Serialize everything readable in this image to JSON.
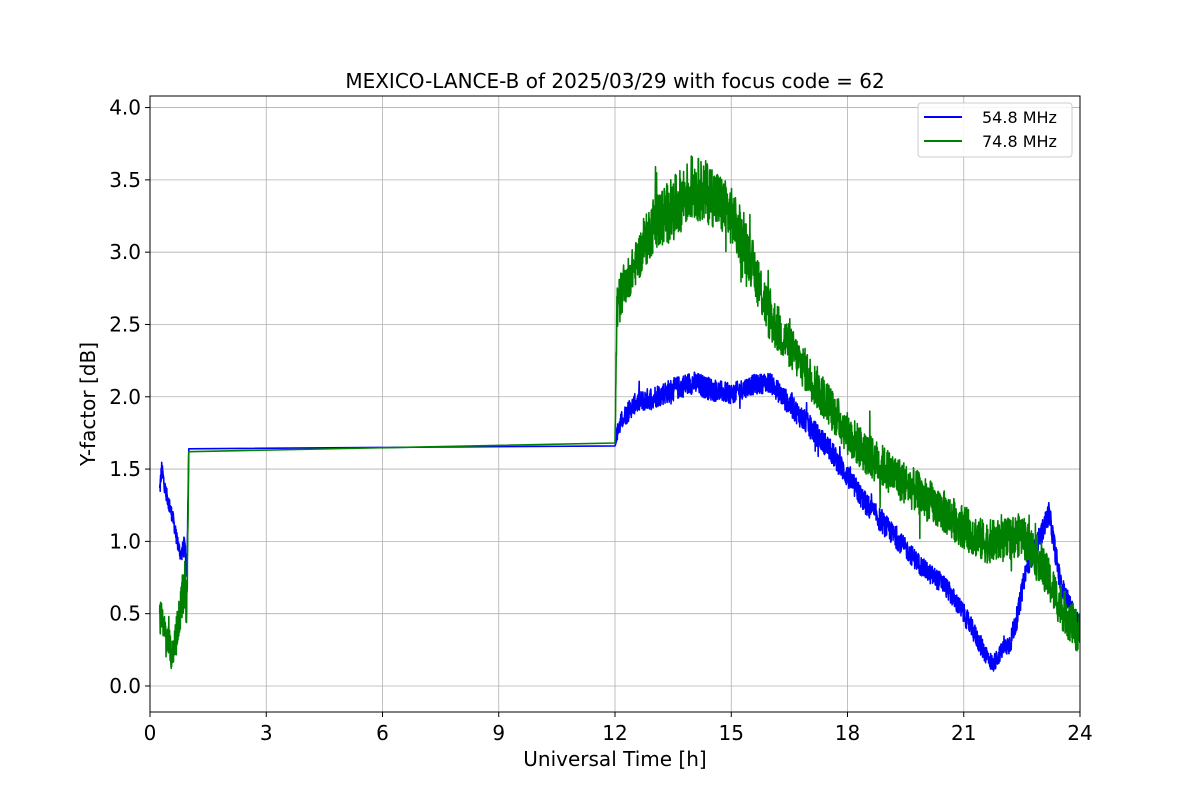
{
  "chart_data": {
    "type": "line",
    "title": "MEXICO-LANCE-B of 2025/03/29 with focus code = 62",
    "xlabel": "Universal Time [h]",
    "ylabel": "Y-factor [dB]",
    "xlim": [
      0,
      24
    ],
    "ylim": [
      -0.18,
      4.08
    ],
    "xticks": [
      0,
      3,
      6,
      9,
      12,
      15,
      18,
      21,
      24
    ],
    "yticks": [
      0.0,
      0.5,
      1.0,
      1.5,
      2.0,
      2.5,
      3.0,
      3.5,
      4.0
    ],
    "xtick_labels": [
      "0",
      "3",
      "6",
      "9",
      "12",
      "15",
      "18",
      "21",
      "24"
    ],
    "ytick_labels": [
      "0.0",
      "0.5",
      "1.0",
      "1.5",
      "2.0",
      "2.5",
      "3.0",
      "3.5",
      "4.0"
    ],
    "grid": true,
    "legend_position": "top-right",
    "series": [
      {
        "name": "54.8 MHz",
        "color": "#0000ff",
        "x": [
          0.25,
          0.3,
          0.4,
          0.5,
          0.6,
          0.7,
          0.75,
          0.8,
          0.9,
          0.95,
          1.0,
          12.0,
          12.05,
          12.2,
          12.5,
          13.0,
          13.5,
          14.0,
          14.5,
          15.0,
          15.5,
          16.0,
          16.5,
          17.0,
          17.5,
          18.0,
          18.5,
          19.0,
          19.5,
          20.0,
          20.5,
          21.0,
          21.5,
          21.75,
          22.0,
          22.2,
          22.4,
          22.6,
          23.0,
          23.2,
          23.5,
          24.0
        ],
        "y": [
          1.35,
          1.5,
          1.35,
          1.25,
          1.15,
          1.0,
          0.95,
          0.9,
          1.0,
          0.75,
          1.64,
          1.66,
          1.75,
          1.85,
          1.95,
          2.0,
          2.05,
          2.1,
          2.05,
          2.02,
          2.08,
          2.1,
          1.95,
          1.8,
          1.65,
          1.45,
          1.25,
          1.1,
          0.95,
          0.8,
          0.7,
          0.5,
          0.25,
          0.15,
          0.25,
          0.3,
          0.5,
          0.8,
          1.05,
          1.2,
          0.7,
          0.4
        ],
        "amplitude": [
          0.06,
          0.06,
          0.05,
          0.05,
          0.05,
          0.05,
          0.05,
          0.05,
          0.06,
          0.06,
          0.0,
          0.0,
          0.06,
          0.07,
          0.07,
          0.08,
          0.08,
          0.08,
          0.08,
          0.07,
          0.07,
          0.07,
          0.08,
          0.08,
          0.08,
          0.08,
          0.08,
          0.08,
          0.07,
          0.07,
          0.07,
          0.07,
          0.07,
          0.06,
          0.06,
          0.08,
          0.08,
          0.07,
          0.08,
          0.08,
          0.08,
          0.08
        ]
      },
      {
        "name": "74.8 MHz",
        "color": "#008000",
        "x": [
          0.25,
          0.3,
          0.4,
          0.5,
          0.55,
          0.6,
          0.7,
          0.8,
          0.9,
          0.95,
          1.0,
          12.0,
          12.05,
          12.2,
          12.5,
          13.0,
          13.5,
          14.0,
          14.5,
          15.0,
          15.5,
          16.0,
          16.5,
          17.0,
          17.5,
          18.0,
          18.5,
          19.0,
          19.5,
          20.0,
          20.5,
          21.0,
          21.5,
          22.0,
          22.5,
          23.0,
          23.5,
          24.0
        ],
        "y": [
          0.45,
          0.5,
          0.35,
          0.3,
          0.2,
          0.25,
          0.4,
          0.55,
          0.7,
          0.5,
          1.62,
          1.68,
          2.6,
          2.75,
          2.9,
          3.2,
          3.3,
          3.45,
          3.4,
          3.25,
          2.95,
          2.55,
          2.35,
          2.15,
          1.95,
          1.75,
          1.6,
          1.5,
          1.4,
          1.3,
          1.2,
          1.1,
          1.0,
          1.0,
          1.05,
          0.85,
          0.55,
          0.35
        ],
        "amplitude": [
          0.12,
          0.1,
          0.1,
          0.1,
          0.1,
          0.1,
          0.12,
          0.15,
          0.18,
          0.15,
          0.0,
          0.0,
          0.2,
          0.15,
          0.15,
          0.2,
          0.22,
          0.22,
          0.22,
          0.2,
          0.18,
          0.18,
          0.15,
          0.15,
          0.15,
          0.15,
          0.15,
          0.15,
          0.15,
          0.15,
          0.15,
          0.15,
          0.15,
          0.15,
          0.15,
          0.15,
          0.15,
          0.15
        ]
      }
    ]
  }
}
